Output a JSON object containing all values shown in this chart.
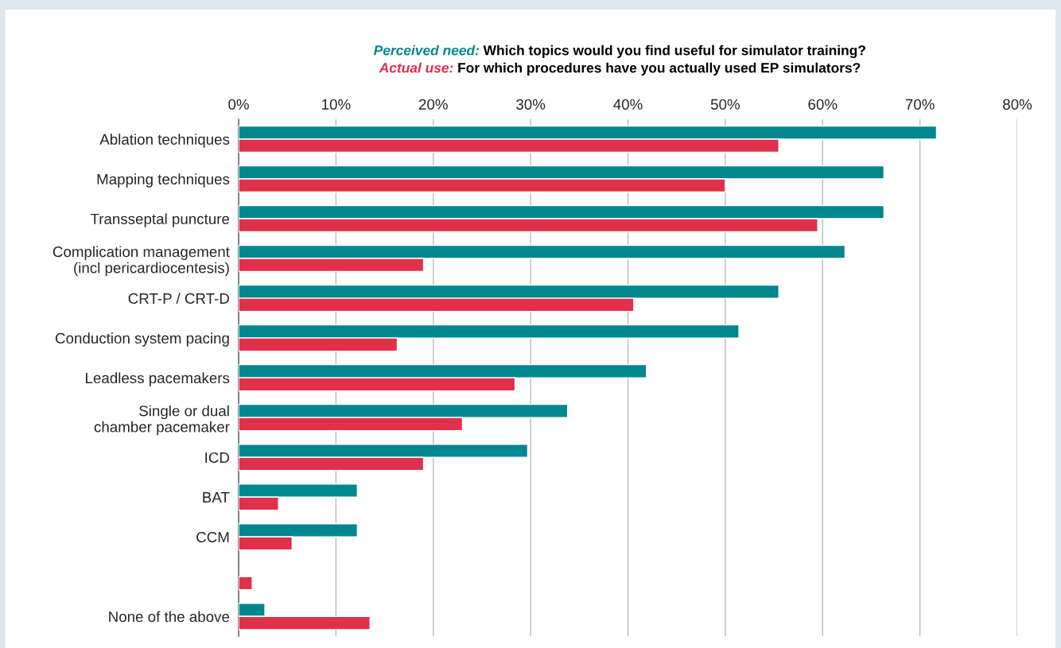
{
  "chart_data": {
    "type": "bar",
    "orientation": "horizontal",
    "title": "Which topics would you find useful for simulator training?",
    "subtitle": "For which procedures have you actually used EP simulators?",
    "categories": [
      "Ablation techniques",
      "Mapping techniques",
      "Transseptal puncture",
      "Complication management\n(incl pericardiocentesis)",
      "CRT-P / CRT-D",
      "Conduction system pacing",
      "Leadless pacemakers",
      "Single or dual\nchamber pacemaker",
      "ICD",
      "BAT",
      "CCM",
      null,
      "None of the above"
    ],
    "series": [
      {
        "name": "Perceived need:",
        "color": "#00868f",
        "values": [
          71.7,
          66.3,
          66.3,
          62.3,
          55.5,
          51.4,
          41.9,
          33.8,
          29.7,
          12.2,
          12.2,
          null,
          2.7
        ]
      },
      {
        "name": "Actual use:",
        "color": "#e0304a",
        "values": [
          55.5,
          50.0,
          59.5,
          19.0,
          40.6,
          16.3,
          28.4,
          23.0,
          19.0,
          4.1,
          5.5,
          1.4,
          13.5
        ]
      }
    ],
    "xlim": [
      0,
      80
    ],
    "xticks": [
      {
        "value": 0,
        "label": "0%"
      },
      {
        "value": 10,
        "label": "10%"
      },
      {
        "value": 20,
        "label": "20%"
      },
      {
        "value": 30,
        "label": "30%"
      },
      {
        "value": 40,
        "label": "40%"
      },
      {
        "value": 50,
        "label": "50%"
      },
      {
        "value": 60,
        "label": "60%"
      },
      {
        "value": 70,
        "label": "70%"
      },
      {
        "value": 80,
        "label": "80%"
      }
    ],
    "grid": "x",
    "legend": false
  }
}
